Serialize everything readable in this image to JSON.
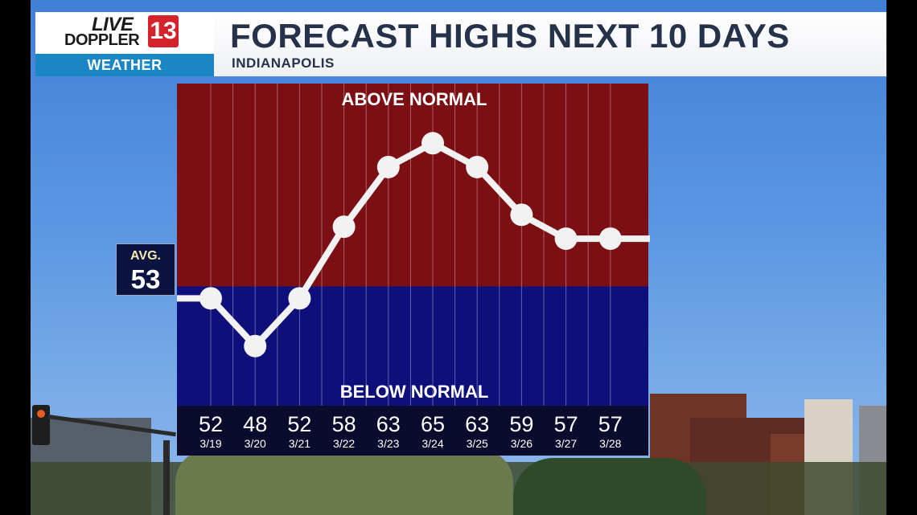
{
  "header": {
    "logo_live": "LIVE",
    "logo_doppler": "DOPPLER",
    "logo_number": "13",
    "logo_weather": "WEATHER",
    "title": "FORECAST HIGHS NEXT 10 DAYS",
    "subtitle": "INDIANAPOLIS"
  },
  "avg": {
    "label": "AVG.",
    "value": "53"
  },
  "colors": {
    "above": "#7c0f14",
    "below": "#0e0f7a",
    "line": "#f2f2f2",
    "strip": "#0b0b2e"
  },
  "chart_data": {
    "type": "line",
    "x": [
      "3/19",
      "3/20",
      "3/21",
      "3/22",
      "3/23",
      "3/24",
      "3/25",
      "3/26",
      "3/27",
      "3/28"
    ],
    "values": [
      52,
      48,
      52,
      58,
      63,
      65,
      63,
      59,
      57,
      57
    ],
    "average": 53,
    "ylim": [
      43,
      70
    ],
    "above_label": "ABOVE NORMAL",
    "below_label": "BELOW NORMAL",
    "grid": true
  }
}
